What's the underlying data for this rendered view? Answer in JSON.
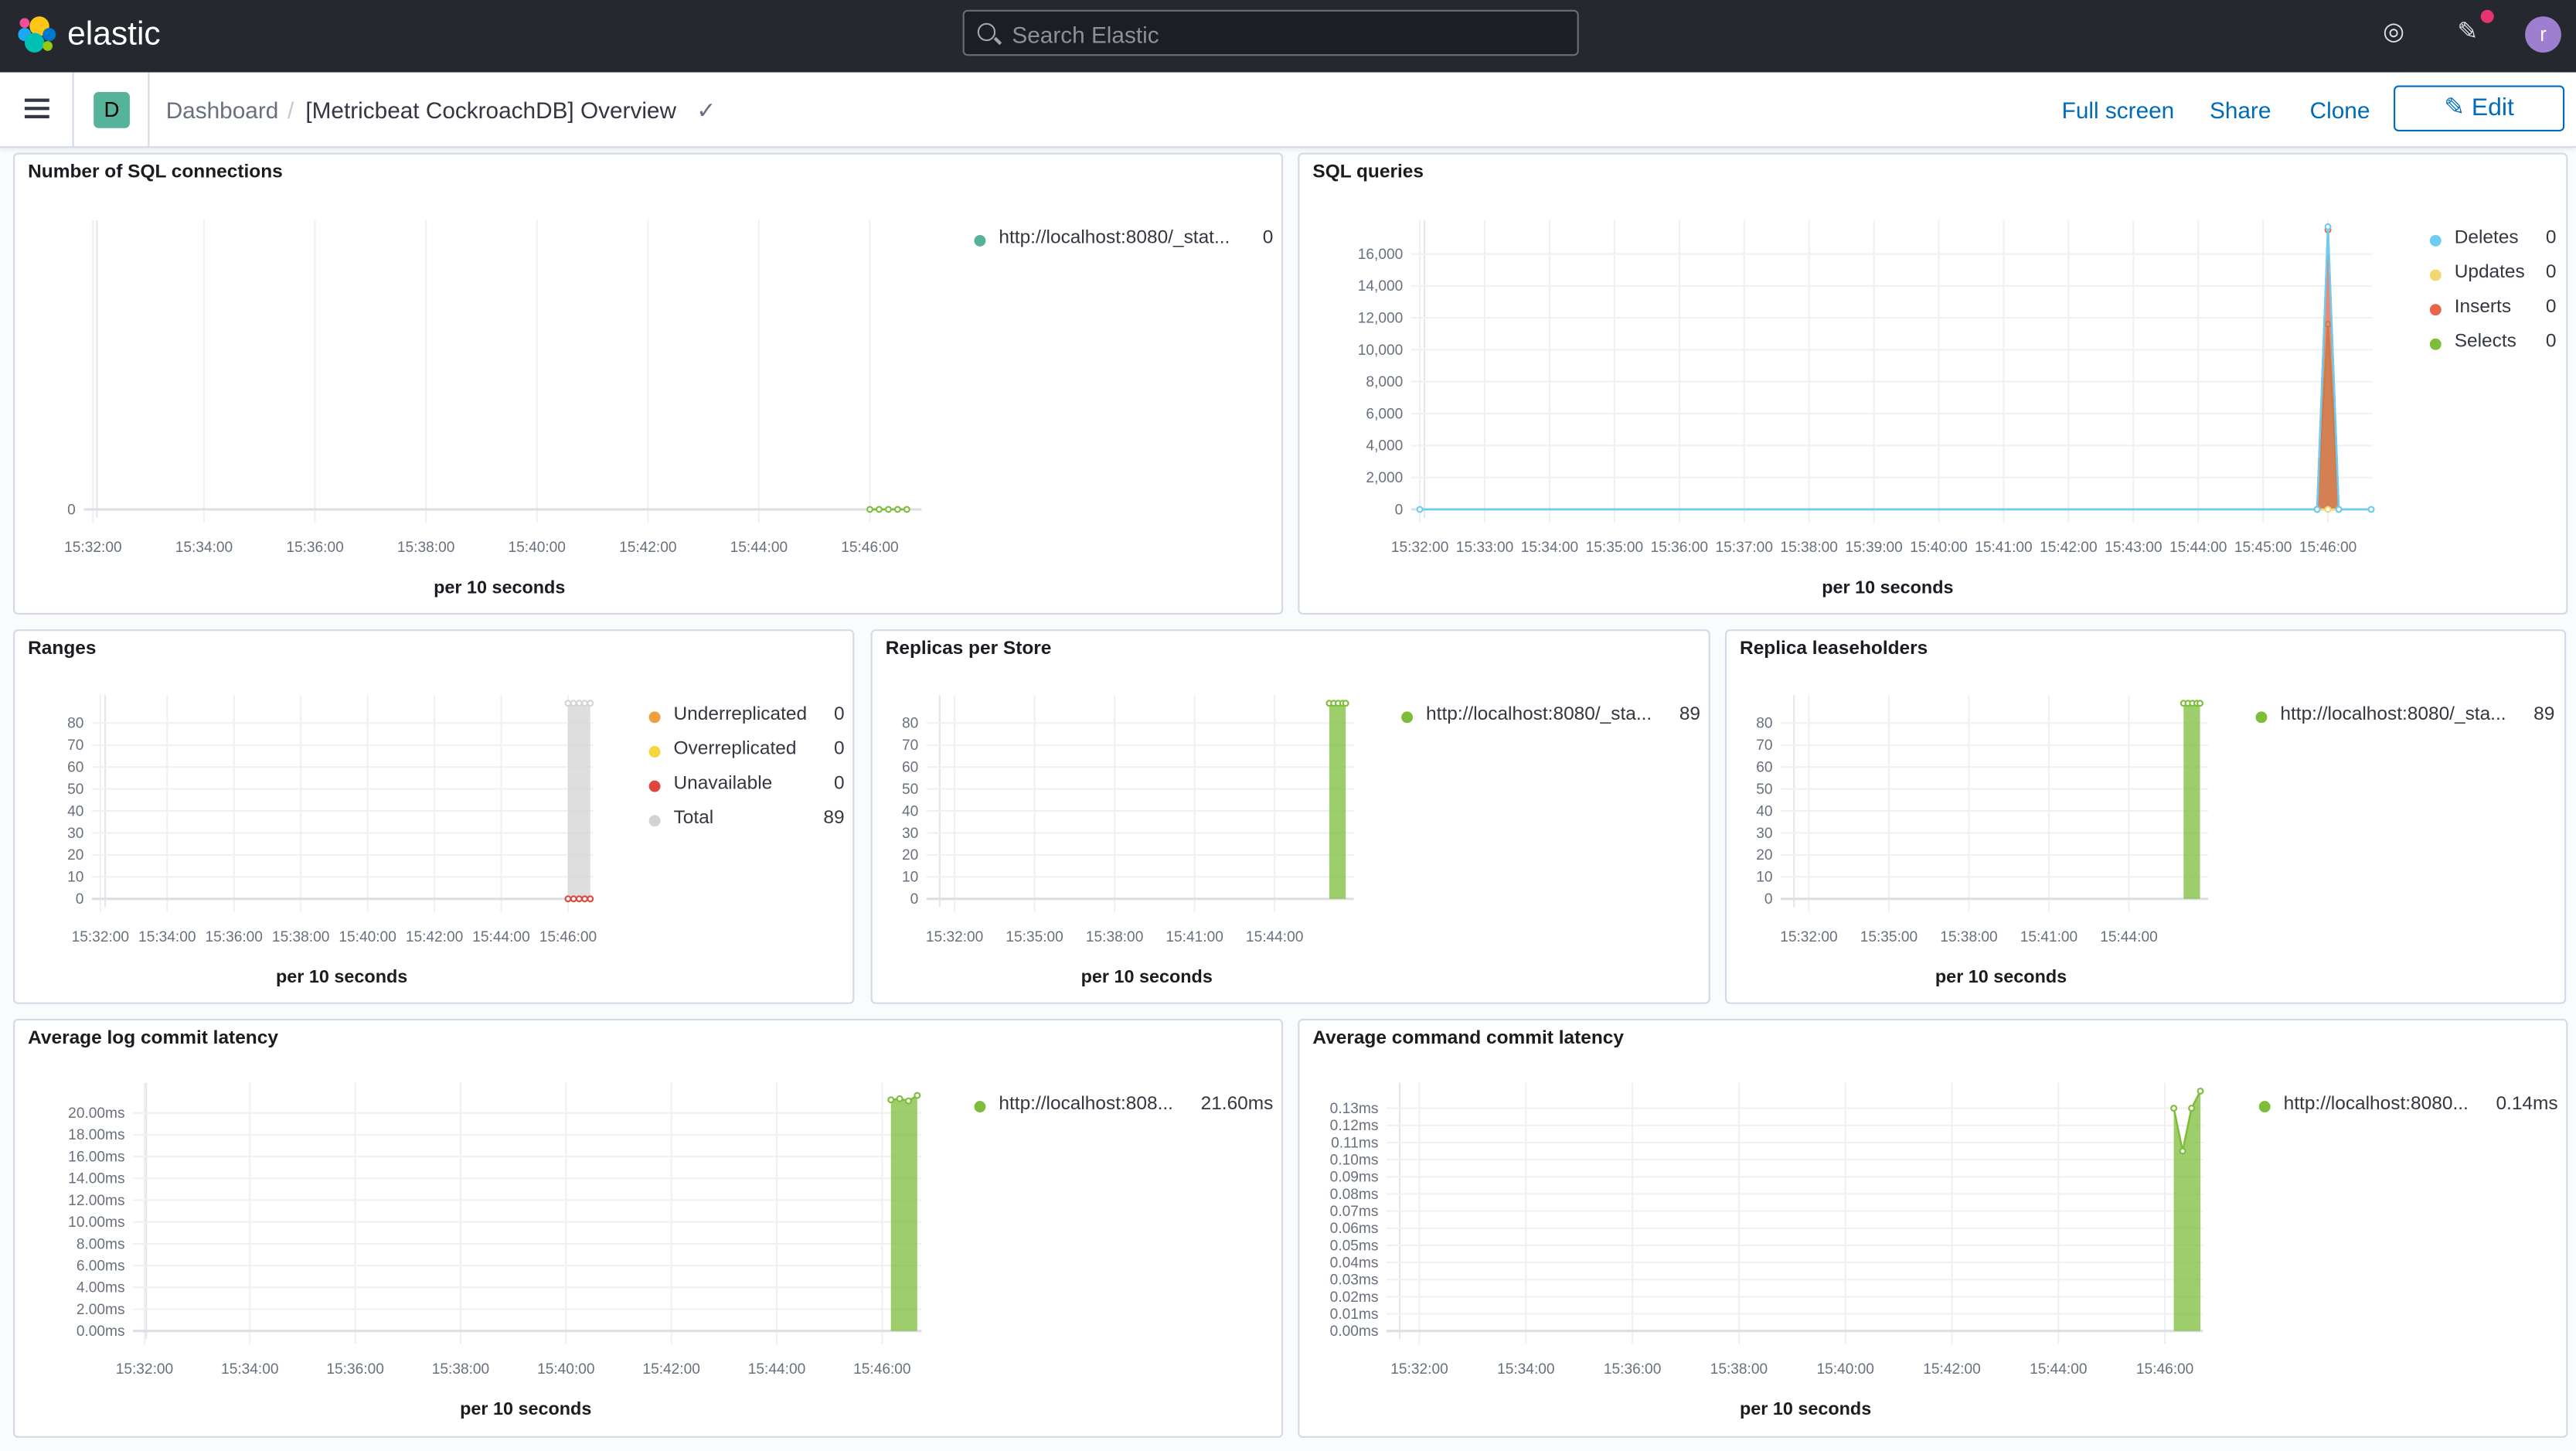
{
  "header": {
    "brand": "elastic",
    "search_placeholder": "Search Elastic",
    "icons": [
      "help-icon",
      "newsfeed-icon"
    ],
    "notification_color": "#e7336f",
    "avatar_initial": "r"
  },
  "nav": {
    "space_initial": "D",
    "breadcrumb": [
      "Dashboard",
      "[Metricbeat CockroachDB] Overview"
    ],
    "actions": {
      "full_screen": "Full screen",
      "share": "Share",
      "clone": "Clone",
      "edit": "Edit"
    }
  },
  "panels": [
    {
      "title": "Number of SQL connections",
      "xlabel": "per 10 seconds",
      "legend": [
        {
          "label": "http://localhost:8080/_stat...",
          "value": "0",
          "color": "#54b399"
        }
      ]
    },
    {
      "title": "SQL queries",
      "xlabel": "per 10 seconds",
      "legend": [
        {
          "label": "Deletes",
          "value": "0",
          "color": "#6dccf1"
        },
        {
          "label": "Updates",
          "value": "0",
          "color": "#f1d86f"
        },
        {
          "label": "Inserts",
          "value": "0",
          "color": "#e7664c"
        },
        {
          "label": "Selects",
          "value": "0",
          "color": "#7dbd3a"
        }
      ]
    },
    {
      "title": "Ranges",
      "xlabel": "per 10 seconds",
      "legend": [
        {
          "label": "Underreplicated",
          "value": "0",
          "color": "#f19f3e"
        },
        {
          "label": "Overreplicated",
          "value": "0",
          "color": "#f5d63d"
        },
        {
          "label": "Unavailable",
          "value": "0",
          "color": "#e0463c"
        },
        {
          "label": "Total",
          "value": "89",
          "color": "#d3d3d3"
        }
      ]
    },
    {
      "title": "Replicas per Store",
      "xlabel": "per 10 seconds",
      "legend": [
        {
          "label": "http://localhost:8080/_sta...",
          "value": "89",
          "color": "#7dbd3a"
        }
      ]
    },
    {
      "title": "Replica leaseholders",
      "xlabel": "per 10 seconds",
      "legend": [
        {
          "label": "http://localhost:8080/_sta...",
          "value": "89",
          "color": "#7dbd3a"
        }
      ]
    },
    {
      "title": "Average log commit latency",
      "xlabel": "per 10 seconds",
      "legend": [
        {
          "label": "http://localhost:808...",
          "value": "21.60ms",
          "color": "#7dbd3a"
        }
      ]
    },
    {
      "title": "Average command commit latency",
      "xlabel": "per 10 seconds",
      "legend": [
        {
          "label": "http://localhost:8080...",
          "value": "0.14ms",
          "color": "#7dbd3a"
        }
      ]
    }
  ],
  "chart_data": [
    {
      "type": "line",
      "xlim": [
        "15:31:50",
        "15:46:56"
      ],
      "ylim": [
        0,
        1
      ],
      "yticks": [
        {
          "v": 0,
          "label": "0"
        }
      ],
      "xticks": [
        "15:32:00",
        "15:34:00",
        "15:36:00",
        "15:38:00",
        "15:40:00",
        "15:42:00",
        "15:44:00",
        "15:46:00"
      ],
      "series": [
        {
          "name": "http://localhost:8080/_stat...",
          "color": "#7dbd3a",
          "area": false,
          "points": [
            [
              "15:46:00",
              0
            ],
            [
              "15:46:10",
              0
            ],
            [
              "15:46:20",
              0
            ],
            [
              "15:46:30",
              0
            ],
            [
              "15:46:40",
              0
            ]
          ]
        }
      ]
    },
    {
      "type": "area",
      "xlim": [
        "15:31:52",
        "15:46:41"
      ],
      "ylim": [
        0,
        17600
      ],
      "yticks": [
        {
          "v": 0,
          "label": "0"
        },
        {
          "v": 2000,
          "label": "2,000"
        },
        {
          "v": 4000,
          "label": "4,000"
        },
        {
          "v": 6000,
          "label": "6,000"
        },
        {
          "v": 8000,
          "label": "8,000"
        },
        {
          "v": 10000,
          "label": "10,000"
        },
        {
          "v": 12000,
          "label": "12,000"
        },
        {
          "v": 14000,
          "label": "14,000"
        },
        {
          "v": 16000,
          "label": "16,000"
        }
      ],
      "xticks": [
        "15:32:00",
        "15:33:00",
        "15:34:00",
        "15:35:00",
        "15:36:00",
        "15:37:00",
        "15:38:00",
        "15:39:00",
        "15:40:00",
        "15:41:00",
        "15:42:00",
        "15:43:00",
        "15:44:00",
        "15:45:00",
        "15:46:00"
      ],
      "series": [
        {
          "name": "Selects",
          "color": "#7dbd3a",
          "area": true,
          "points": [
            [
              "15:45:50",
              0
            ],
            [
              "15:46:00",
              11600
            ],
            [
              "15:46:10",
              0
            ]
          ]
        },
        {
          "name": "Inserts",
          "color": "#e7664c",
          "area": true,
          "points": [
            [
              "15:45:50",
              0
            ],
            [
              "15:46:00",
              17500
            ],
            [
              "15:46:10",
              0
            ]
          ]
        },
        {
          "name": "Updates",
          "color": "#f1d86f",
          "area": true,
          "points": [
            [
              "15:45:50",
              0
            ],
            [
              "15:46:00",
              0
            ],
            [
              "15:46:10",
              0
            ]
          ]
        },
        {
          "name": "Deletes",
          "color": "#6dccf1",
          "area": false,
          "points": [
            [
              "15:32:00",
              0
            ],
            [
              "15:45:50",
              0
            ],
            [
              "15:46:00",
              17700
            ],
            [
              "15:46:10",
              0
            ],
            [
              "15:46:40",
              0
            ]
          ]
        }
      ]
    },
    {
      "type": "area",
      "xlim": [
        "15:31:45",
        "15:46:45"
      ],
      "ylim": [
        0,
        89
      ],
      "yticks": [
        {
          "v": 0,
          "label": "0"
        },
        {
          "v": 10,
          "label": "10"
        },
        {
          "v": 20,
          "label": "20"
        },
        {
          "v": 30,
          "label": "30"
        },
        {
          "v": 40,
          "label": "40"
        },
        {
          "v": 50,
          "label": "50"
        },
        {
          "v": 60,
          "label": "60"
        },
        {
          "v": 70,
          "label": "70"
        },
        {
          "v": 80,
          "label": "80"
        }
      ],
      "xticks": [
        "15:32:00",
        "15:34:00",
        "15:36:00",
        "15:38:00",
        "15:40:00",
        "15:42:00",
        "15:44:00",
        "15:46:00"
      ],
      "series": [
        {
          "name": "Total",
          "color": "#d3d3d3",
          "area": true,
          "points": [
            [
              "15:46:00",
              89
            ],
            [
              "15:46:10",
              89
            ],
            [
              "15:46:20",
              89
            ],
            [
              "15:46:30",
              89
            ],
            [
              "15:46:40",
              89
            ]
          ]
        },
        {
          "name": "Unavailable",
          "color": "#e0463c",
          "area": false,
          "points": [
            [
              "15:46:00",
              0
            ],
            [
              "15:46:10",
              0
            ],
            [
              "15:46:20",
              0
            ],
            [
              "15:46:30",
              0
            ],
            [
              "15:46:40",
              0
            ]
          ]
        }
      ]
    },
    {
      "type": "area",
      "xlim": [
        "15:30:57",
        "15:46:58"
      ],
      "ylim": [
        0,
        89
      ],
      "yticks": [
        {
          "v": 0,
          "label": "0"
        },
        {
          "v": 10,
          "label": "10"
        },
        {
          "v": 20,
          "label": "20"
        },
        {
          "v": 30,
          "label": "30"
        },
        {
          "v": 40,
          "label": "40"
        },
        {
          "v": 50,
          "label": "50"
        },
        {
          "v": 60,
          "label": "60"
        },
        {
          "v": 70,
          "label": "70"
        },
        {
          "v": 80,
          "label": "80"
        }
      ],
      "xticks": [
        "15:32:00",
        "15:35:00",
        "15:38:00",
        "15:41:00",
        "15:44:00"
      ],
      "series": [
        {
          "name": "http://localhost:8080/_sta...",
          "color": "#7dbd3a",
          "area": true,
          "points": [
            [
              "15:46:03",
              89
            ],
            [
              "15:46:13",
              89
            ],
            [
              "15:46:23",
              89
            ],
            [
              "15:46:33",
              89
            ],
            [
              "15:46:40",
              89
            ]
          ]
        }
      ]
    },
    {
      "type": "area",
      "xlim": [
        "15:30:57",
        "15:46:58"
      ],
      "ylim": [
        0,
        89
      ],
      "yticks": [
        {
          "v": 0,
          "label": "0"
        },
        {
          "v": 10,
          "label": "10"
        },
        {
          "v": 20,
          "label": "20"
        },
        {
          "v": 30,
          "label": "30"
        },
        {
          "v": 40,
          "label": "40"
        },
        {
          "v": 50,
          "label": "50"
        },
        {
          "v": 60,
          "label": "60"
        },
        {
          "v": 70,
          "label": "70"
        },
        {
          "v": 80,
          "label": "80"
        }
      ],
      "xticks": [
        "15:32:00",
        "15:35:00",
        "15:38:00",
        "15:41:00",
        "15:44:00"
      ],
      "series": [
        {
          "name": "http://localhost:8080/_sta...",
          "color": "#7dbd3a",
          "area": true,
          "points": [
            [
              "15:46:03",
              89
            ],
            [
              "15:46:13",
              89
            ],
            [
              "15:46:23",
              89
            ],
            [
              "15:46:33",
              89
            ],
            [
              "15:46:40",
              89
            ]
          ]
        }
      ]
    },
    {
      "type": "area",
      "xlim": [
        "15:31:47",
        "15:46:45"
      ],
      "ylim": [
        0,
        22
      ],
      "yticks": [
        {
          "v": 0,
          "label": "0.00ms"
        },
        {
          "v": 2,
          "label": "2.00ms"
        },
        {
          "v": 4,
          "label": "4.00ms"
        },
        {
          "v": 6,
          "label": "6.00ms"
        },
        {
          "v": 8,
          "label": "8.00ms"
        },
        {
          "v": 10,
          "label": "10.00ms"
        },
        {
          "v": 12,
          "label": "12.00ms"
        },
        {
          "v": 14,
          "label": "14.00ms"
        },
        {
          "v": 16,
          "label": "16.00ms"
        },
        {
          "v": 18,
          "label": "18.00ms"
        },
        {
          "v": 20,
          "label": "20.00ms"
        }
      ],
      "xticks": [
        "15:32:00",
        "15:34:00",
        "15:36:00",
        "15:38:00",
        "15:40:00",
        "15:42:00",
        "15:44:00",
        "15:46:00"
      ],
      "series": [
        {
          "name": "http://localhost:808...",
          "color": "#7dbd3a",
          "area": true,
          "points": [
            [
              "15:46:10",
              21.2
            ],
            [
              "15:46:20",
              21.3
            ],
            [
              "15:46:30",
              21.1
            ],
            [
              "15:46:40",
              21.6
            ]
          ]
        }
      ]
    },
    {
      "type": "area",
      "xlim": [
        "15:31:23",
        "15:46:43"
      ],
      "ylim": [
        0,
        0.14
      ],
      "yticks": [
        {
          "v": 0,
          "label": "0.00ms"
        },
        {
          "v": 0.01,
          "label": "0.01ms"
        },
        {
          "v": 0.02,
          "label": "0.02ms"
        },
        {
          "v": 0.03,
          "label": "0.03ms"
        },
        {
          "v": 0.04,
          "label": "0.04ms"
        },
        {
          "v": 0.05,
          "label": "0.05ms"
        },
        {
          "v": 0.06,
          "label": "0.06ms"
        },
        {
          "v": 0.07,
          "label": "0.07ms"
        },
        {
          "v": 0.08,
          "label": "0.08ms"
        },
        {
          "v": 0.09,
          "label": "0.09ms"
        },
        {
          "v": 0.1,
          "label": "0.10ms"
        },
        {
          "v": 0.11,
          "label": "0.11ms"
        },
        {
          "v": 0.12,
          "label": "0.12ms"
        },
        {
          "v": 0.13,
          "label": "0.13ms"
        }
      ],
      "xticks": [
        "15:32:00",
        "15:34:00",
        "15:36:00",
        "15:38:00",
        "15:40:00",
        "15:42:00",
        "15:44:00",
        "15:46:00"
      ],
      "series": [
        {
          "name": "http://localhost:8080...",
          "color": "#7dbd3a",
          "area": true,
          "points": [
            [
              "15:46:10",
              0.13
            ],
            [
              "15:46:20",
              0.105
            ],
            [
              "15:46:30",
              0.13
            ],
            [
              "15:46:40",
              0.14
            ]
          ]
        }
      ]
    }
  ]
}
